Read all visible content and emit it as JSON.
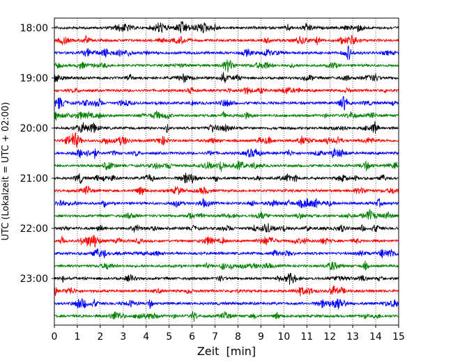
{
  "chart_data": {
    "type": "line",
    "title": "",
    "xlabel": "Zeit  [min]",
    "ylabel": "UTC (Lokalzeit = UTC + 02:00)",
    "xlim": [
      0,
      15
    ],
    "x_ticks": [
      "0",
      "1",
      "2",
      "3",
      "4",
      "5",
      "6",
      "7",
      "8",
      "9",
      "10",
      "11",
      "12",
      "13",
      "14",
      "15"
    ],
    "y_ticks": [
      "18:00",
      "19:00",
      "20:00",
      "21:00",
      "22:00",
      "23:00"
    ],
    "grid": "vertical dotted lines at each minute",
    "trace_interval_min": 15,
    "color_cycle": [
      "#000000",
      "#ff0000",
      "#0000ff",
      "#008000"
    ],
    "traces": [
      {
        "start": "18:00",
        "color": "#000000"
      },
      {
        "start": "18:15",
        "color": "#ff0000"
      },
      {
        "start": "18:30",
        "color": "#0000ff"
      },
      {
        "start": "18:45",
        "color": "#008000"
      },
      {
        "start": "19:00",
        "color": "#000000"
      },
      {
        "start": "19:15",
        "color": "#ff0000"
      },
      {
        "start": "19:30",
        "color": "#0000ff"
      },
      {
        "start": "19:45",
        "color": "#008000"
      },
      {
        "start": "20:00",
        "color": "#000000"
      },
      {
        "start": "20:15",
        "color": "#ff0000"
      },
      {
        "start": "20:30",
        "color": "#0000ff"
      },
      {
        "start": "20:45",
        "color": "#008000"
      },
      {
        "start": "21:00",
        "color": "#000000"
      },
      {
        "start": "21:15",
        "color": "#ff0000"
      },
      {
        "start": "21:30",
        "color": "#0000ff"
      },
      {
        "start": "21:45",
        "color": "#008000"
      },
      {
        "start": "22:00",
        "color": "#000000"
      },
      {
        "start": "22:15",
        "color": "#ff0000"
      },
      {
        "start": "22:30",
        "color": "#0000ff"
      },
      {
        "start": "22:45",
        "color": "#008000"
      },
      {
        "start": "23:00",
        "color": "#000000"
      },
      {
        "start": "23:15",
        "color": "#ff0000"
      },
      {
        "start": "23:30",
        "color": "#0000ff"
      },
      {
        "start": "23:45",
        "color": "#008000"
      }
    ]
  }
}
